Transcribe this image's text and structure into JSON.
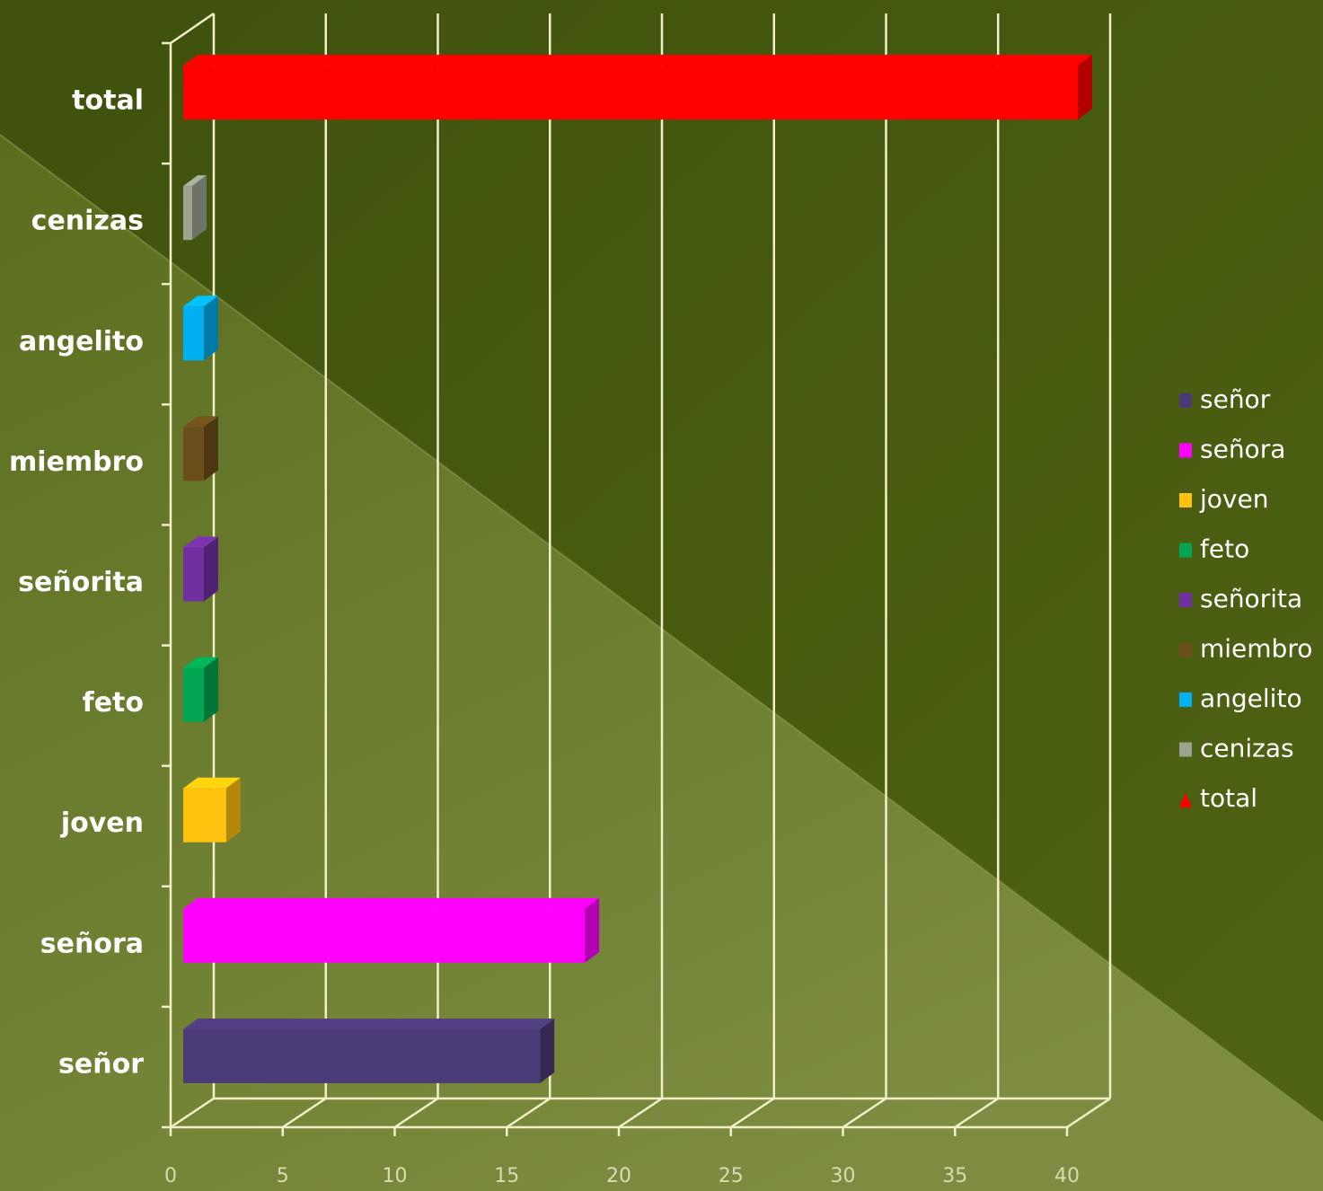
{
  "chart_data": {
    "type": "bar",
    "orientation": "horizontal",
    "three_d": true,
    "categories": [
      "señor",
      "señora",
      "joven",
      "feto",
      "señorita",
      "miembro",
      "angelito",
      "cenizas",
      "total"
    ],
    "values": [
      16,
      18,
      2,
      1,
      1,
      1,
      1,
      0,
      40
    ],
    "colors": [
      "#4b3a78",
      "#ff00ff",
      "#ffc20e",
      "#00a651",
      "#7030a0",
      "#6b4e1a",
      "#00b0f0",
      "#9ea391",
      "#ff0000"
    ],
    "xlim": [
      0,
      40
    ],
    "xticks": [
      0,
      5,
      10,
      15,
      20,
      25,
      30,
      35,
      40
    ],
    "grid": true,
    "legend": {
      "placement": "right",
      "items": [
        {
          "label": "señor",
          "color": "#4b3a78"
        },
        {
          "label": "señora",
          "color": "#ff00ff"
        },
        {
          "label": "joven",
          "color": "#ffc20e"
        },
        {
          "label": "feto",
          "color": "#00a651"
        },
        {
          "label": "señorita",
          "color": "#7030a0"
        },
        {
          "label": "miembro",
          "color": "#6b4e1a"
        },
        {
          "label": "angelito",
          "color": "#00b0f0"
        },
        {
          "label": "cenizas",
          "color": "#9ea391"
        },
        {
          "label": "total",
          "color": "#ff0000"
        }
      ]
    }
  }
}
